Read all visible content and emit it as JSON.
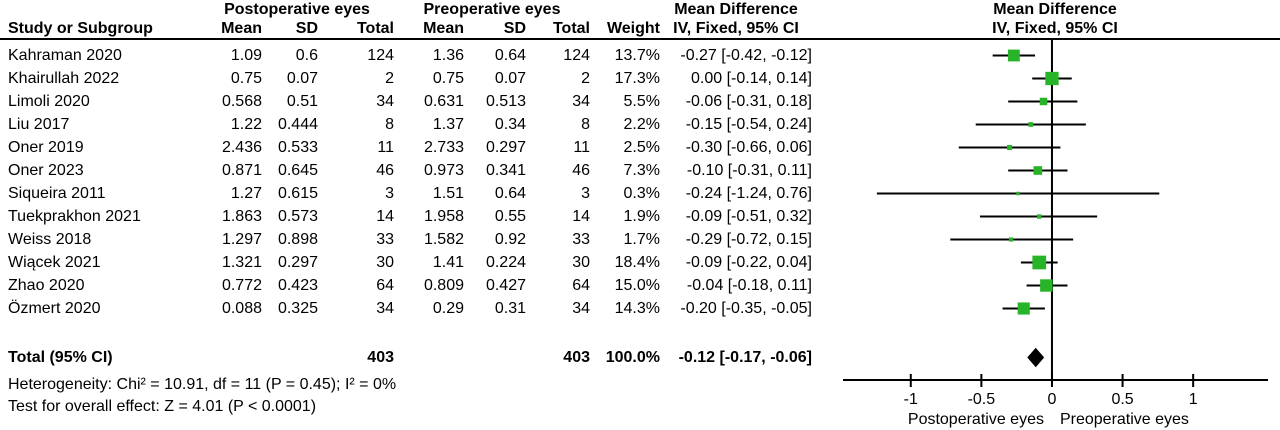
{
  "header": {
    "study_col": "Study or Subgroup",
    "group1_label": "Postoperative eyes",
    "group2_label": "Preoperative eyes",
    "sub_cols": {
      "mean": "Mean",
      "sd": "SD",
      "total": "Total",
      "weight": "Weight"
    },
    "md_col_line1": "Mean Difference",
    "md_col_line2": "IV, Fixed, 95% CI",
    "plot_col_line1": "Mean Difference",
    "plot_col_line2": "IV, Fixed, 95% CI"
  },
  "total_row": {
    "label": "Total (95% CI)",
    "total1": "403",
    "total2": "403",
    "weight": "100.0%",
    "ci_text": "-0.12 [-0.17, -0.06]"
  },
  "footnotes": {
    "heterogeneity": "Heterogeneity: Chi² = 10.91, df = 11 (P = 0.45); I² = 0%",
    "overall_effect": "Test for overall effect: Z = 4.01 (P < 0.0001)"
  },
  "chart_data": {
    "type": "forest",
    "effect_measure": "Mean Difference IV, Fixed, 95% CI",
    "studies": [
      {
        "name": "Kahraman 2020",
        "mean1": "1.09",
        "sd1": "0.6",
        "total1": "124",
        "mean2": "1.36",
        "sd2": "0.64",
        "total2": "124",
        "weight": "13.7%",
        "weight_pct": 13.7,
        "ci_text": "-0.27 [-0.42, -0.12]",
        "md": -0.27,
        "lo": -0.42,
        "hi": -0.12
      },
      {
        "name": "Khairullah 2022",
        "mean1": "0.75",
        "sd1": "0.07",
        "total1": "2",
        "mean2": "0.75",
        "sd2": "0.07",
        "total2": "2",
        "weight": "17.3%",
        "weight_pct": 17.3,
        "ci_text": "0.00 [-0.14, 0.14]",
        "md": 0.0,
        "lo": -0.14,
        "hi": 0.14
      },
      {
        "name": "Limoli 2020",
        "mean1": "0.568",
        "sd1": "0.51",
        "total1": "34",
        "mean2": "0.631",
        "sd2": "0.513",
        "total2": "34",
        "weight": "5.5%",
        "weight_pct": 5.5,
        "ci_text": "-0.06 [-0.31, 0.18]",
        "md": -0.06,
        "lo": -0.31,
        "hi": 0.18
      },
      {
        "name": "Liu 2017",
        "mean1": "1.22",
        "sd1": "0.444",
        "total1": "8",
        "mean2": "1.37",
        "sd2": "0.34",
        "total2": "8",
        "weight": "2.2%",
        "weight_pct": 2.2,
        "ci_text": "-0.15 [-0.54, 0.24]",
        "md": -0.15,
        "lo": -0.54,
        "hi": 0.24
      },
      {
        "name": "Oner 2019",
        "mean1": "2.436",
        "sd1": "0.533",
        "total1": "11",
        "mean2": "2.733",
        "sd2": "0.297",
        "total2": "11",
        "weight": "2.5%",
        "weight_pct": 2.5,
        "ci_text": "-0.30 [-0.66, 0.06]",
        "md": -0.3,
        "lo": -0.66,
        "hi": 0.06
      },
      {
        "name": "Oner 2023",
        "mean1": "0.871",
        "sd1": "0.645",
        "total1": "46",
        "mean2": "0.973",
        "sd2": "0.341",
        "total2": "46",
        "weight": "7.3%",
        "weight_pct": 7.3,
        "ci_text": "-0.10 [-0.31, 0.11]",
        "md": -0.1,
        "lo": -0.31,
        "hi": 0.11
      },
      {
        "name": "Siqueira 2011",
        "mean1": "1.27",
        "sd1": "0.615",
        "total1": "3",
        "mean2": "1.51",
        "sd2": "0.64",
        "total2": "3",
        "weight": "0.3%",
        "weight_pct": 0.3,
        "ci_text": "-0.24 [-1.24, 0.76]",
        "md": -0.24,
        "lo": -1.24,
        "hi": 0.76
      },
      {
        "name": "Tuekprakhon 2021",
        "mean1": "1.863",
        "sd1": "0.573",
        "total1": "14",
        "mean2": "1.958",
        "sd2": "0.55",
        "total2": "14",
        "weight": "1.9%",
        "weight_pct": 1.9,
        "ci_text": "-0.09 [-0.51, 0.32]",
        "md": -0.09,
        "lo": -0.51,
        "hi": 0.32
      },
      {
        "name": "Weiss 2018",
        "mean1": "1.297",
        "sd1": "0.898",
        "total1": "33",
        "mean2": "1.582",
        "sd2": "0.92",
        "total2": "33",
        "weight": "1.7%",
        "weight_pct": 1.7,
        "ci_text": "-0.29 [-0.72, 0.15]",
        "md": -0.29,
        "lo": -0.72,
        "hi": 0.15
      },
      {
        "name": "Wiącek 2021",
        "mean1": "1.321",
        "sd1": "0.297",
        "total1": "30",
        "mean2": "1.41",
        "sd2": "0.224",
        "total2": "30",
        "weight": "18.4%",
        "weight_pct": 18.4,
        "ci_text": "-0.09 [-0.22, 0.04]",
        "md": -0.09,
        "lo": -0.22,
        "hi": 0.04
      },
      {
        "name": "Zhao 2020",
        "mean1": "0.772",
        "sd1": "0.423",
        "total1": "64",
        "mean2": "0.809",
        "sd2": "0.427",
        "total2": "64",
        "weight": "15.0%",
        "weight_pct": 15.0,
        "ci_text": "-0.04 [-0.18, 0.11]",
        "md": -0.04,
        "lo": -0.18,
        "hi": 0.11
      },
      {
        "name": "Özmert 2020",
        "mean1": "0.088",
        "sd1": "0.325",
        "total1": "34",
        "mean2": "0.29",
        "sd2": "0.31",
        "total2": "34",
        "weight": "14.3%",
        "weight_pct": 14.3,
        "ci_text": "-0.20 [-0.35, -0.05]",
        "md": -0.2,
        "lo": -0.35,
        "hi": -0.05
      }
    ],
    "total": {
      "md": -0.12,
      "lo": -0.17,
      "hi": -0.06,
      "n1": 403,
      "n2": 403,
      "weight_pct": 100.0
    },
    "axis": {
      "range": [
        -1.48,
        1.53
      ],
      "ticks": [
        -1,
        -0.5,
        0,
        0.5,
        1
      ],
      "tick_labels": [
        "-1",
        "-0.5",
        "0",
        "0.5",
        "1"
      ],
      "label_left": "Postoperative eyes",
      "label_right": "Preoperative eyes",
      "grid": false
    },
    "colors": {
      "marker": "#28b428",
      "ci_line": "#000000",
      "diamond": "#000000",
      "axis": "#000000"
    }
  }
}
